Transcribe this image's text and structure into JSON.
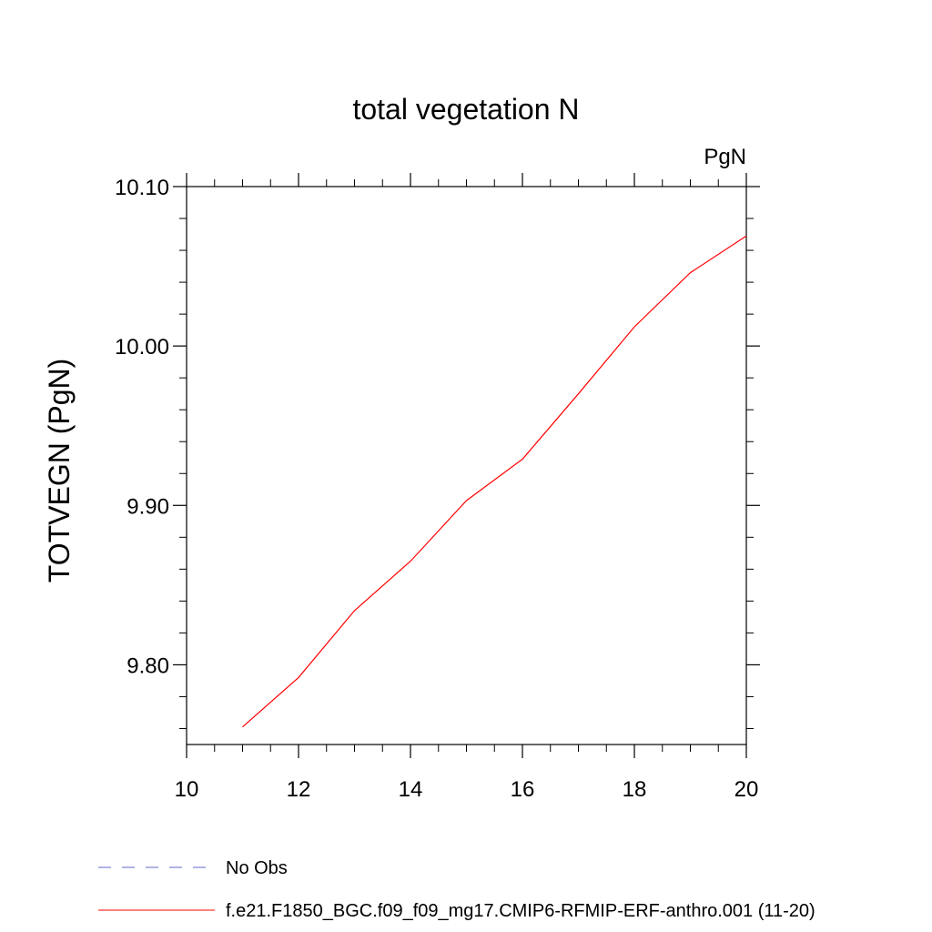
{
  "chart_data": {
    "type": "line",
    "title": "total vegetation N",
    "units_label": "PgN",
    "ylabel": "TOTVEGN  (PgN)",
    "xlabel": "",
    "xlim": [
      10,
      20
    ],
    "ylim": [
      9.75,
      10.1
    ],
    "x_ticks": [
      10,
      12,
      14,
      16,
      18,
      20
    ],
    "x_tick_labels": [
      "10",
      "12",
      "14",
      "16",
      "18",
      "20"
    ],
    "y_ticks": [
      9.8,
      9.9,
      10.0,
      10.1
    ],
    "y_tick_labels": [
      "9.80",
      "9.90",
      "10.00",
      "10.10"
    ],
    "grid": false,
    "legend_position": "bottom",
    "series": [
      {
        "name": "f.e21.F1850_BGC.f09_f09_mg17.CMIP6-RFMIP-ERF-anthro.001 (11-20)",
        "color": "#ff0000",
        "dash": "solid",
        "x": [
          11,
          12,
          13,
          14,
          15,
          16,
          17,
          18,
          19,
          20
        ],
        "y": [
          9.761,
          9.792,
          9.834,
          9.865,
          9.903,
          9.929,
          9.97,
          10.012,
          10.046,
          10.069
        ]
      }
    ],
    "legend": [
      {
        "label": "No Obs",
        "color": "#6666cc",
        "dash": "dashed"
      },
      {
        "label": "f.e21.F1850_BGC.f09_f09_mg17.CMIP6-RFMIP-ERF-anthro.001 (11-20)",
        "color": "#ff0000",
        "dash": "solid"
      }
    ]
  }
}
